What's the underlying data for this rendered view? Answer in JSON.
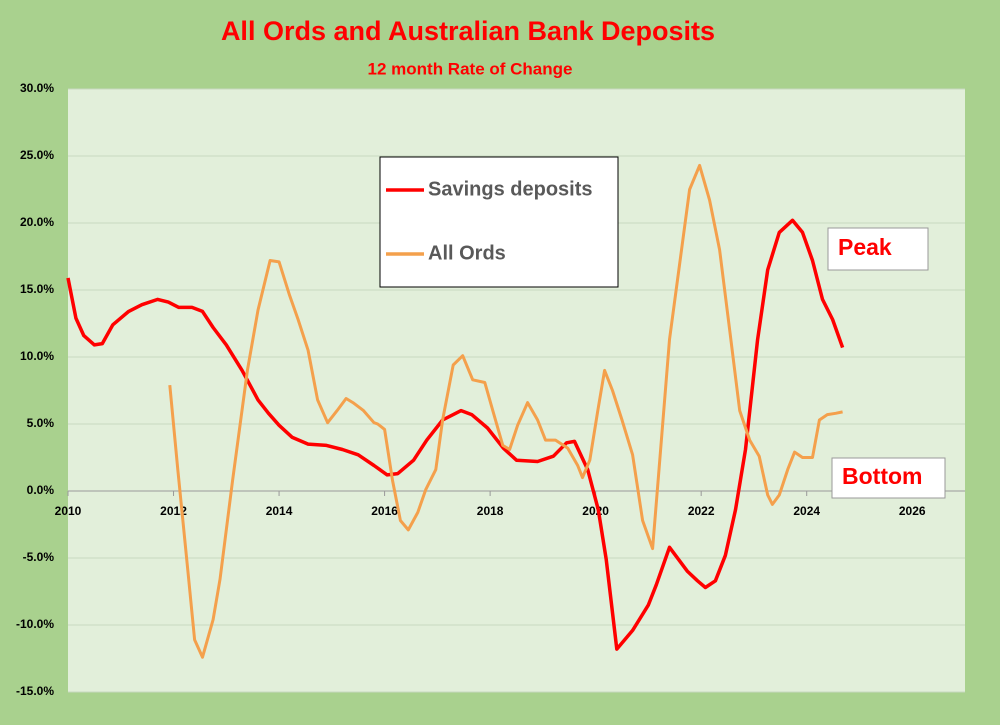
{
  "chart_data": {
    "type": "line",
    "title": "All Ords and Australian Bank Deposits",
    "subtitle": "12 month Rate of Change",
    "xlim": [
      2010,
      2027
    ],
    "xticks": [
      2010,
      2012,
      2014,
      2016,
      2018,
      2020,
      2022,
      2024,
      2026
    ],
    "ylim": [
      -15,
      30
    ],
    "yticks": [
      {
        "value": -15,
        "label": "-15.0%"
      },
      {
        "value": -10,
        "label": "-10.0%"
      },
      {
        "value": -5,
        "label": "-5.0%"
      },
      {
        "value": 0,
        "label": "0.0%"
      },
      {
        "value": 5,
        "label": "5.0%"
      },
      {
        "value": 10,
        "label": "10.0%"
      },
      {
        "value": 15,
        "label": "15.0%"
      },
      {
        "value": 20,
        "label": "20.0%"
      },
      {
        "value": 25,
        "label": "25.0%"
      },
      {
        "value": 30,
        "label": "30.0%"
      }
    ],
    "grid": true,
    "annotations": [
      "Peak",
      "Bottom"
    ],
    "series": [
      {
        "name": "Savings deposits",
        "color": "#ff0000",
        "x": [
          2010.0,
          2010.15,
          2010.3,
          2010.5,
          2010.65,
          2010.85,
          2011.15,
          2011.4,
          2011.7,
          2011.9,
          2012.1,
          2012.35,
          2012.55,
          2012.75,
          2013.0,
          2013.3,
          2013.6,
          2013.8,
          2014.0,
          2014.25,
          2014.55,
          2014.9,
          2015.2,
          2015.5,
          2015.8,
          2016.05,
          2016.25,
          2016.55,
          2016.8,
          2017.1,
          2017.45,
          2017.65,
          2017.95,
          2018.25,
          2018.5,
          2018.9,
          2019.2,
          2019.45,
          2019.6,
          2019.85,
          2020.05,
          2020.2,
          2020.4,
          2020.7,
          2021.0,
          2021.15,
          2021.4,
          2021.74,
          2021.93,
          2022.08,
          2022.27,
          2022.46,
          2022.65,
          2022.84,
          2023.07,
          2023.26,
          2023.48,
          2023.73,
          2023.92,
          2024.11,
          2024.3,
          2024.49,
          2024.68
        ],
        "values": [
          15.9,
          12.9,
          11.6,
          10.9,
          11.0,
          12.4,
          13.4,
          13.9,
          14.3,
          14.1,
          13.7,
          13.7,
          13.4,
          12.2,
          10.9,
          9.0,
          6.8,
          5.8,
          4.9,
          4.0,
          3.5,
          3.4,
          3.1,
          2.7,
          1.9,
          1.2,
          1.3,
          2.3,
          3.8,
          5.3,
          6.0,
          5.7,
          4.7,
          3.2,
          2.3,
          2.2,
          2.6,
          3.6,
          3.7,
          1.6,
          -1.4,
          -5.1,
          -11.8,
          -10.4,
          -8.5,
          -7.0,
          -4.2,
          -6.0,
          -6.7,
          -7.2,
          -6.7,
          -4.8,
          -1.4,
          3.1,
          11.3,
          16.5,
          19.3,
          20.2,
          19.3,
          17.2,
          14.3,
          12.8,
          10.7
        ]
      },
      {
        "name": "All Ords",
        "color": "#f4a04c",
        "x": [
          2011.93,
          2012.08,
          2012.27,
          2012.4,
          2012.55,
          2012.75,
          2012.88,
          2013.12,
          2013.4,
          2013.6,
          2013.83,
          2014.0,
          2014.2,
          2014.36,
          2014.55,
          2014.73,
          2014.92,
          2015.1,
          2015.27,
          2015.4,
          2015.6,
          2015.8,
          2015.87,
          2016.0,
          2016.15,
          2016.3,
          2016.45,
          2016.63,
          2016.78,
          2016.97,
          2017.1,
          2017.3,
          2017.48,
          2017.67,
          2017.9,
          2018.05,
          2018.24,
          2018.37,
          2018.52,
          2018.71,
          2018.9,
          2019.05,
          2019.24,
          2019.47,
          2019.66,
          2019.75,
          2019.89,
          2020.04,
          2020.17,
          2020.32,
          2020.5,
          2020.7,
          2020.89,
          2021.08,
          2021.2,
          2021.4,
          2021.6,
          2021.78,
          2021.97,
          2022.16,
          2022.35,
          2022.54,
          2022.73,
          2022.92,
          2023.1,
          2023.26,
          2023.35,
          2023.48,
          2023.64,
          2023.77,
          2023.92,
          2024.11,
          2024.24,
          2024.39,
          2024.55,
          2024.68
        ],
        "values": [
          7.9,
          1.6,
          -5.9,
          -11.1,
          -12.4,
          -9.6,
          -6.6,
          0.8,
          9.0,
          13.5,
          17.2,
          17.1,
          14.6,
          12.8,
          10.5,
          6.8,
          5.1,
          6.0,
          6.9,
          6.6,
          6.0,
          5.1,
          5.0,
          4.6,
          0.8,
          -2.2,
          -2.9,
          -1.6,
          0.1,
          1.6,
          5.3,
          9.4,
          10.1,
          8.3,
          8.1,
          6.0,
          3.4,
          3.1,
          4.9,
          6.6,
          5.3,
          3.8,
          3.8,
          3.2,
          1.9,
          1.0,
          2.3,
          6.0,
          9.0,
          7.5,
          5.3,
          2.7,
          -2.2,
          -4.3,
          1.6,
          11.3,
          17.2,
          22.5,
          24.3,
          21.7,
          18.0,
          12.0,
          6.0,
          3.8,
          2.6,
          -0.3,
          -1.0,
          -0.3,
          1.6,
          2.9,
          2.5,
          2.5,
          5.3,
          5.7,
          5.8,
          5.9
        ]
      }
    ]
  }
}
